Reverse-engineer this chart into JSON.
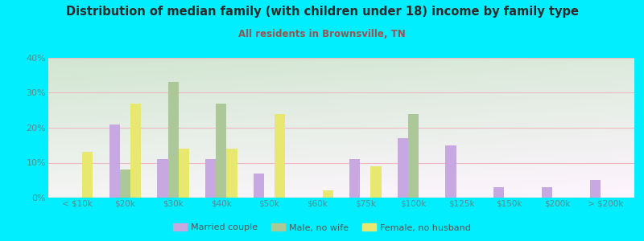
{
  "title": "Distribution of median family (with children under 18) income by family type",
  "subtitle": "All residents in Brownsville, TN",
  "categories": [
    "< $10k",
    "$20k",
    "$30k",
    "$40k",
    "$50k",
    "$60k",
    "$75k",
    "$100k",
    "$125k",
    "$150k",
    "$200k",
    "> $200k"
  ],
  "married_couple": [
    0,
    21,
    11,
    11,
    7,
    0,
    11,
    17,
    15,
    3,
    3,
    5
  ],
  "male_no_wife": [
    0,
    8,
    33,
    27,
    0,
    0,
    0,
    24,
    0,
    0,
    0,
    0
  ],
  "female_no_husband": [
    13,
    27,
    14,
    14,
    24,
    2,
    9,
    0,
    0,
    0,
    0,
    0
  ],
  "colors": {
    "married_couple": "#c8a8e0",
    "male_no_wife": "#adc898",
    "female_no_husband": "#e8e870",
    "background_outer": "#00eeff",
    "grid_line": "#f0b8c0",
    "title": "#2a2a2a",
    "subtitle": "#a05050",
    "tick_label": "#509090"
  },
  "ylim": [
    0,
    40
  ],
  "yticks": [
    0,
    10,
    20,
    30,
    40
  ],
  "bar_width": 0.22,
  "legend_labels": [
    "Married couple",
    "Male, no wife",
    "Female, no husband"
  ]
}
